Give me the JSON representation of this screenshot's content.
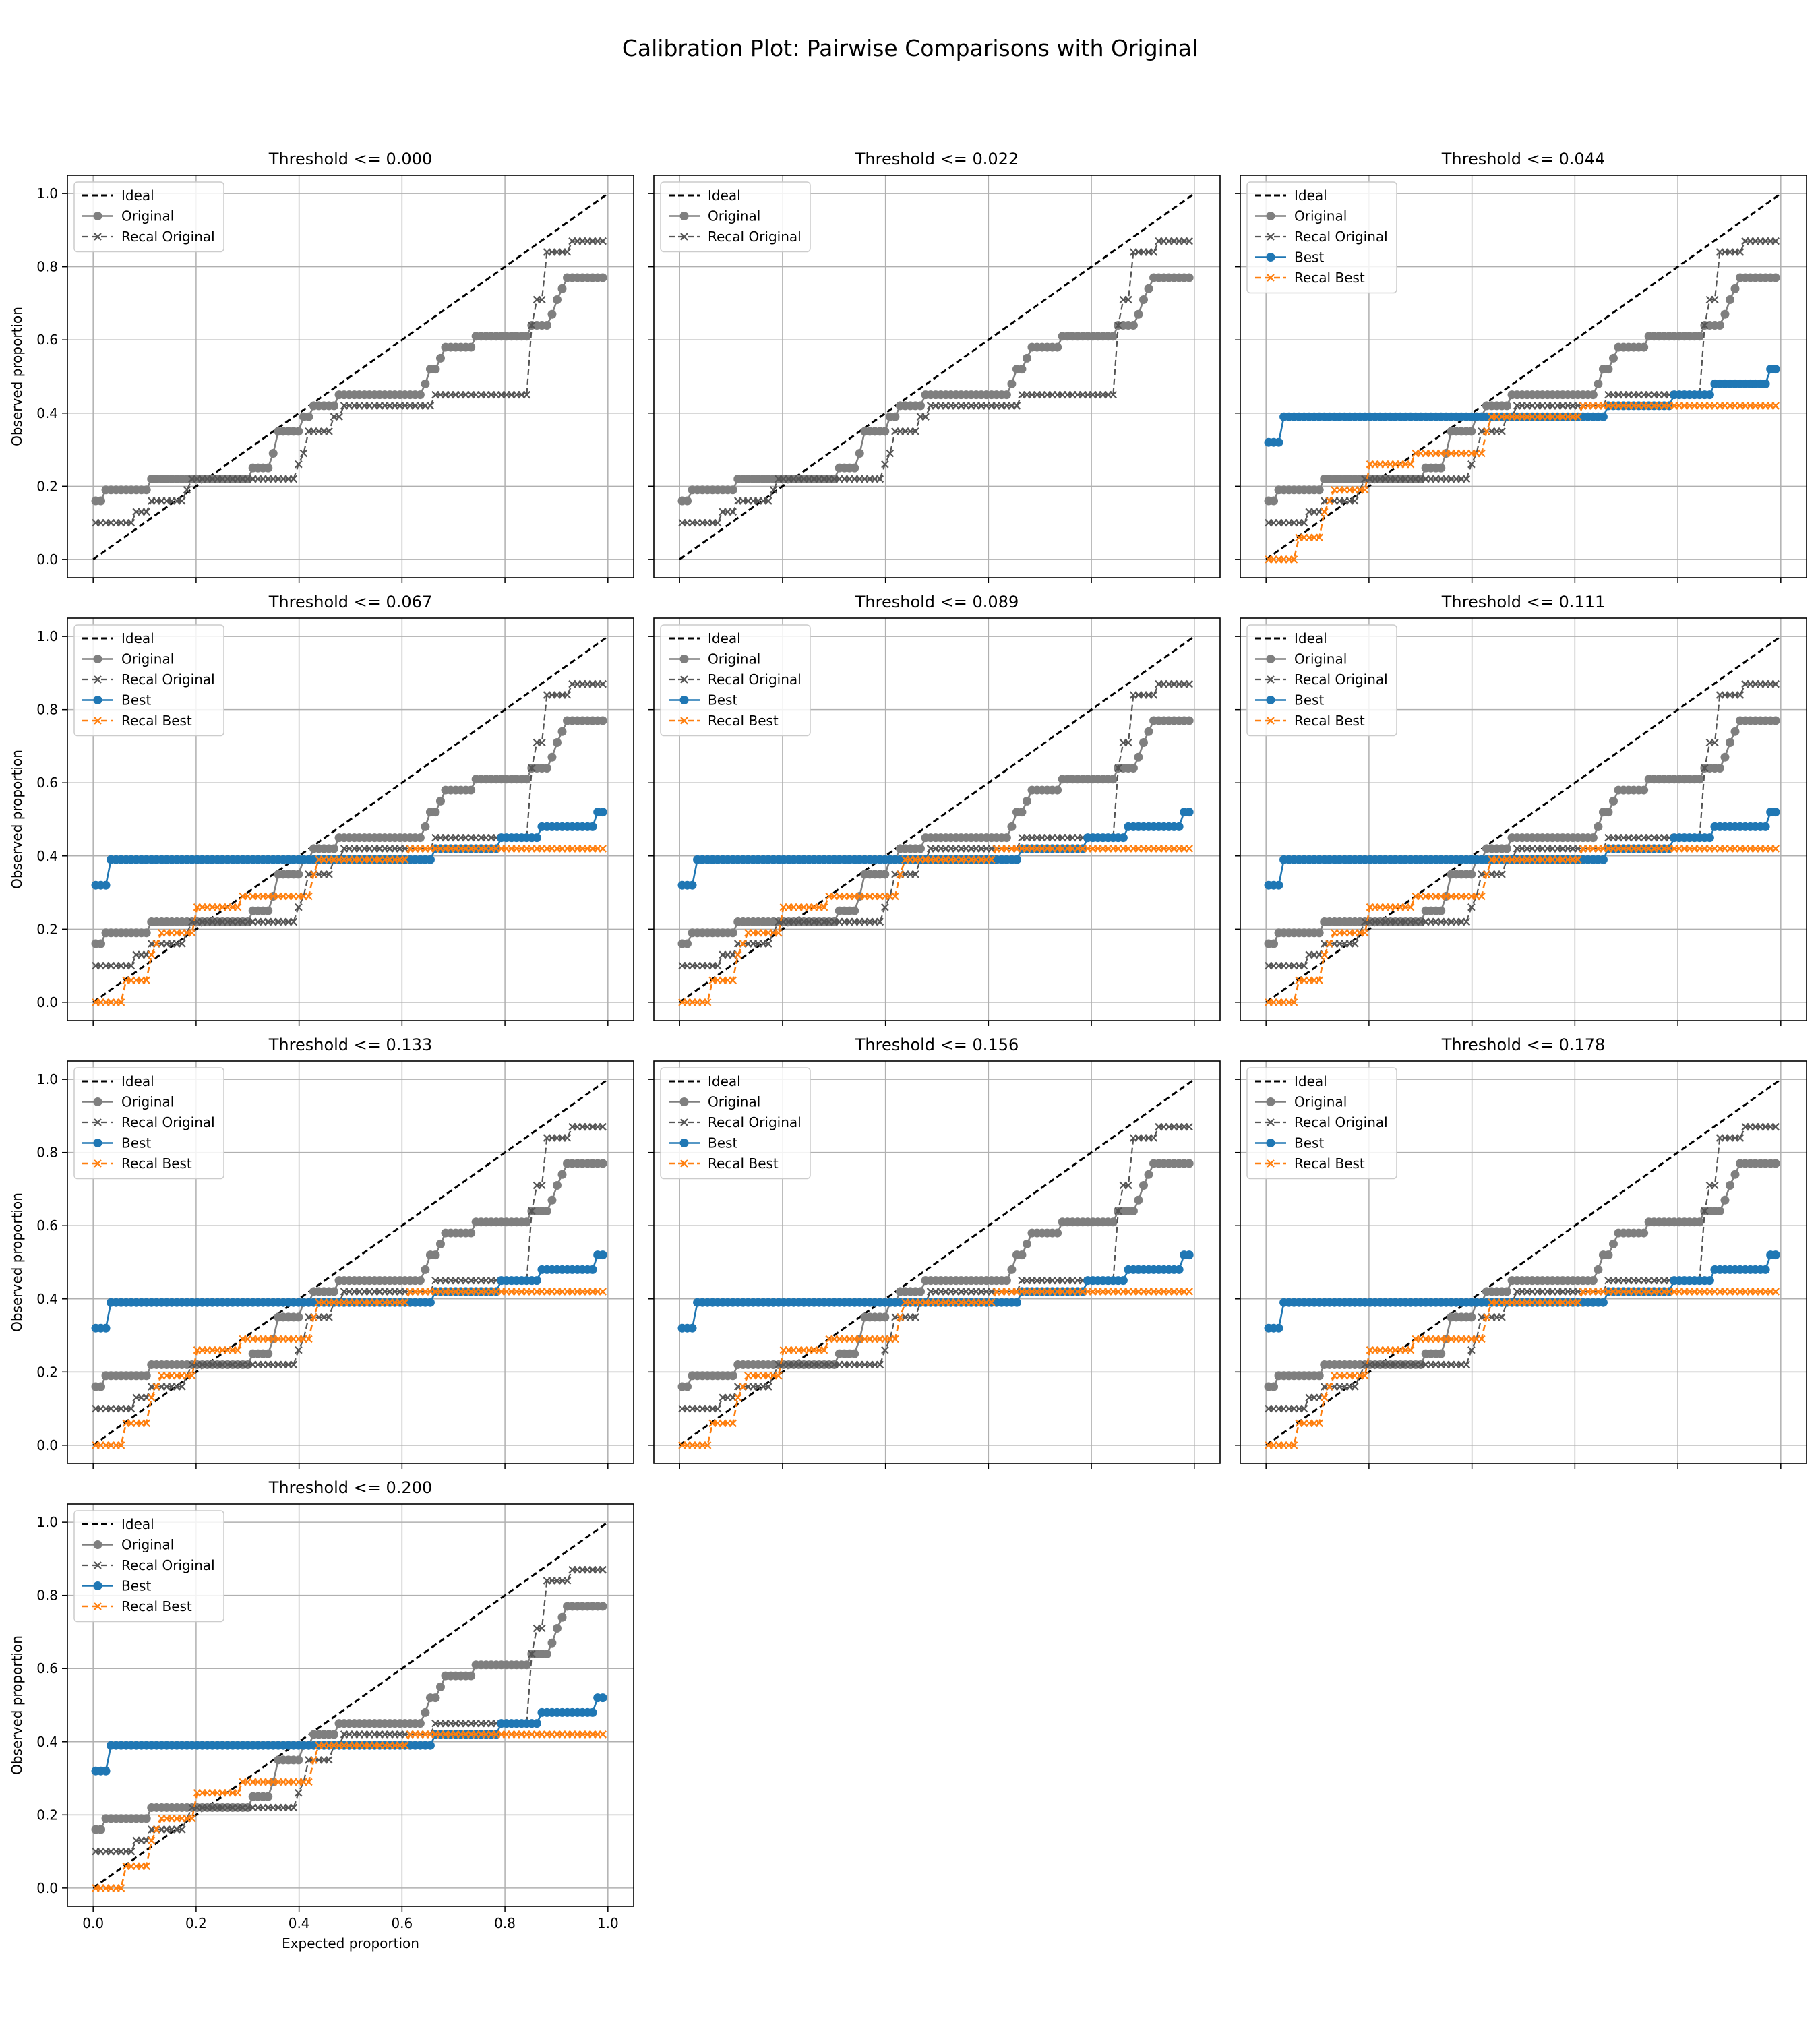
{
  "figure": {
    "title": "Calibration Plot: Pairwise Comparisons with Original"
  },
  "colors": {
    "ideal": "#000000",
    "original": "#7f7f7f",
    "recal_original": "#555555",
    "best": "#1f77b4",
    "recal_best": "#ff7f0e",
    "grid": "#b0b0b0"
  },
  "chart_data": {
    "type": "line",
    "grid": true,
    "legend_position": "upper-left",
    "xlabel": "Expected proportion",
    "ylabel": "Observed proportion",
    "xlim": [
      -0.05,
      1.05
    ],
    "ylim": [
      -0.05,
      1.05
    ],
    "xticks": [
      "0.0",
      "0.2",
      "0.4",
      "0.6",
      "0.8",
      "1.0"
    ],
    "yticks": [
      "0.0",
      "0.2",
      "0.4",
      "0.6",
      "0.8",
      "1.0"
    ],
    "legend_labels": {
      "ideal": "Ideal",
      "original": "Original",
      "recal_original": "Recal Original",
      "best": "Best",
      "recal_best": "Recal Best"
    },
    "curves": {
      "original": [
        [
          0.01,
          0.16
        ],
        [
          0.02,
          0.19
        ],
        [
          0.1,
          0.19
        ],
        [
          0.11,
          0.22
        ],
        [
          0.3,
          0.22
        ],
        [
          0.31,
          0.25
        ],
        [
          0.33,
          0.25
        ],
        [
          0.34,
          0.29
        ],
        [
          0.35,
          0.35
        ],
        [
          0.39,
          0.35
        ],
        [
          0.4,
          0.39
        ],
        [
          0.42,
          0.39
        ],
        [
          0.42,
          0.42
        ],
        [
          0.47,
          0.42
        ],
        [
          0.47,
          0.45
        ],
        [
          0.63,
          0.45
        ],
        [
          0.64,
          0.48
        ],
        [
          0.65,
          0.52
        ],
        [
          0.67,
          0.55
        ],
        [
          0.68,
          0.55
        ],
        [
          0.68,
          0.58
        ],
        [
          0.74,
          0.58
        ],
        [
          0.74,
          0.61
        ],
        [
          0.84,
          0.61
        ],
        [
          0.85,
          0.64
        ],
        [
          0.88,
          0.64
        ],
        [
          0.89,
          0.67
        ],
        [
          0.9,
          0.71
        ],
        [
          0.91,
          0.74
        ],
        [
          0.92,
          0.77
        ],
        [
          1.0,
          0.77
        ]
      ],
      "recal_original": [
        [
          0.01,
          0.1
        ],
        [
          0.07,
          0.1
        ],
        [
          0.08,
          0.13
        ],
        [
          0.11,
          0.13
        ],
        [
          0.11,
          0.16
        ],
        [
          0.17,
          0.16
        ],
        [
          0.18,
          0.19
        ],
        [
          0.19,
          0.22
        ],
        [
          0.38,
          0.22
        ],
        [
          0.39,
          0.26
        ],
        [
          0.4,
          0.29
        ],
        [
          0.41,
          0.35
        ],
        [
          0.45,
          0.35
        ],
        [
          0.46,
          0.39
        ],
        [
          0.48,
          0.42
        ],
        [
          0.65,
          0.42
        ],
        [
          0.66,
          0.45
        ],
        [
          0.85,
          0.45
        ],
        [
          0.85,
          0.64
        ],
        [
          0.86,
          0.71
        ],
        [
          0.88,
          0.77
        ],
        [
          0.88,
          0.84
        ],
        [
          0.93,
          0.84
        ],
        [
          0.93,
          0.87
        ],
        [
          1.0,
          0.87
        ]
      ],
      "best": [
        [
          0.0,
          0.32
        ],
        [
          0.02,
          0.32
        ],
        [
          0.03,
          0.39
        ],
        [
          0.65,
          0.39
        ],
        [
          0.66,
          0.42
        ],
        [
          0.79,
          0.42
        ],
        [
          0.79,
          0.45
        ],
        [
          0.87,
          0.45
        ],
        [
          0.87,
          0.48
        ],
        [
          0.98,
          0.48
        ],
        [
          0.98,
          0.52
        ],
        [
          1.0,
          0.52
        ]
      ],
      "recal_best": [
        [
          0.0,
          0.0
        ],
        [
          0.05,
          0.0
        ],
        [
          0.06,
          0.06
        ],
        [
          0.1,
          0.06
        ],
        [
          0.11,
          0.13
        ],
        [
          0.12,
          0.16
        ],
        [
          0.13,
          0.19
        ],
        [
          0.19,
          0.19
        ],
        [
          0.2,
          0.26
        ],
        [
          0.28,
          0.26
        ],
        [
          0.29,
          0.29
        ],
        [
          0.41,
          0.29
        ],
        [
          0.42,
          0.35
        ],
        [
          0.43,
          0.39
        ],
        [
          0.6,
          0.39
        ],
        [
          0.61,
          0.42
        ],
        [
          1.0,
          0.42
        ]
      ]
    },
    "panels": [
      {
        "title": "Threshold <= 0.000",
        "series": [
          "ideal",
          "original",
          "recal_original"
        ]
      },
      {
        "title": "Threshold <= 0.022",
        "series": [
          "ideal",
          "original",
          "recal_original"
        ]
      },
      {
        "title": "Threshold <= 0.044",
        "series": [
          "ideal",
          "original",
          "recal_original",
          "best",
          "recal_best"
        ]
      },
      {
        "title": "Threshold <= 0.067",
        "series": [
          "ideal",
          "original",
          "recal_original",
          "best",
          "recal_best"
        ]
      },
      {
        "title": "Threshold <= 0.089",
        "series": [
          "ideal",
          "original",
          "recal_original",
          "best",
          "recal_best"
        ]
      },
      {
        "title": "Threshold <= 0.111",
        "series": [
          "ideal",
          "original",
          "recal_original",
          "best",
          "recal_best"
        ]
      },
      {
        "title": "Threshold <= 0.133",
        "series": [
          "ideal",
          "original",
          "recal_original",
          "best",
          "recal_best"
        ]
      },
      {
        "title": "Threshold <= 0.156",
        "series": [
          "ideal",
          "original",
          "recal_original",
          "best",
          "recal_best"
        ]
      },
      {
        "title": "Threshold <= 0.178",
        "series": [
          "ideal",
          "original",
          "recal_original",
          "best",
          "recal_best"
        ]
      },
      {
        "title": "Threshold <= 0.200",
        "series": [
          "ideal",
          "original",
          "recal_original",
          "best",
          "recal_best"
        ]
      }
    ]
  }
}
